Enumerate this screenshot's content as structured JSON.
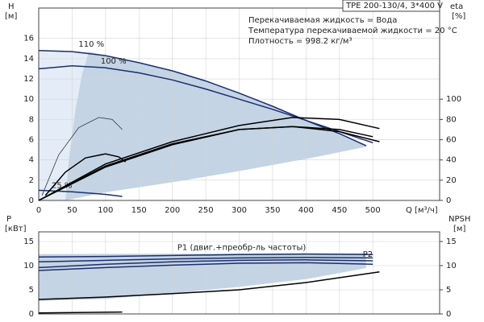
{
  "chart_data": [
    {
      "type": "line",
      "model": "TPE 200-130/4, 3*400 V",
      "notes": [
        "Перекачиваемая жидкость = Вода",
        "Температура перекачиваемой жидкости = 20 °C",
        "Плотность = 998.2 кг/м³"
      ],
      "x_label": "Q [м³/ч]",
      "y_label": "H",
      "y_unit": "[м]",
      "y2_label": "eta",
      "y2_unit": "[%]",
      "xlim": [
        0,
        600
      ],
      "xticks": [
        0,
        50,
        100,
        150,
        200,
        250,
        300,
        350,
        400,
        450,
        500
      ],
      "ylim": [
        0,
        19
      ],
      "yticks": [
        0,
        2,
        4,
        6,
        8,
        10,
        12,
        14,
        16
      ],
      "y2lim": [
        0,
        190
      ],
      "y2ticks": [
        0,
        20,
        40,
        60,
        80,
        100
      ],
      "grid": true,
      "areas": [
        {
          "color": "#e4edf7",
          "x": [
            0,
            75,
            65,
            55,
            45,
            40,
            0
          ],
          "values": [
            14.8,
            14.7,
            12.5,
            9,
            4,
            0,
            0
          ]
        },
        {
          "color": "#c4d4e4",
          "x": [
            75,
            100,
            150,
            200,
            250,
            300,
            350,
            400,
            450,
            490,
            490,
            400,
            300,
            200,
            100,
            40,
            45,
            55,
            65
          ],
          "values": [
            14.7,
            14.3,
            13.6,
            12.8,
            11.8,
            10.6,
            9.3,
            7.9,
            6.6,
            5.4,
            5.3,
            4.1,
            2.9,
            1.8,
            0.8,
            0,
            4,
            9,
            12.5
          ]
        }
      ],
      "series": [
        {
          "name": "110 %",
          "color": "#1c2f6e",
          "x": [
            0,
            50,
            100,
            150,
            200,
            250,
            300,
            350,
            400,
            450,
            490
          ],
          "values": [
            14.8,
            14.7,
            14.3,
            13.6,
            12.8,
            11.8,
            10.6,
            9.3,
            7.9,
            6.6,
            5.4
          ]
        },
        {
          "name": "100 %",
          "color": "#1c2f6e",
          "x": [
            0,
            50,
            100,
            150,
            200,
            250,
            300,
            350,
            400,
            450,
            500
          ],
          "values": [
            13.0,
            13.3,
            13.1,
            12.6,
            11.9,
            11.0,
            10.0,
            9.0,
            7.9,
            6.8,
            5.7
          ]
        },
        {
          "name": "25 %",
          "color": "#1c2f6e",
          "x": [
            0,
            50,
            100,
            125
          ],
          "values": [
            1.0,
            0.85,
            0.6,
            0.4
          ]
        },
        {
          "color": "#333333",
          "axis": "y2",
          "x": [
            5,
            30,
            60,
            90,
            110,
            125
          ],
          "values": [
            5,
            45,
            72,
            82,
            80,
            70
          ]
        },
        {
          "color": "#000000",
          "axis": "y2",
          "x": [
            10,
            40,
            70,
            100,
            120,
            130
          ],
          "values": [
            5,
            28,
            42,
            46,
            43,
            38
          ]
        },
        {
          "color": "#000000",
          "axis": "y2",
          "x": [
            0,
            100,
            200,
            300,
            380,
            450,
            510
          ],
          "values": [
            0,
            36,
            58,
            74,
            82,
            80,
            71
          ]
        },
        {
          "color": "#000000",
          "axis": "y2",
          "x": [
            0,
            100,
            200,
            300,
            380,
            450,
            500
          ],
          "values": [
            0,
            34,
            56,
            70,
            73,
            70,
            63
          ]
        },
        {
          "color": "#000000",
          "axis": "y2",
          "x": [
            0,
            100,
            200,
            300,
            380,
            450,
            510
          ],
          "values": [
            0,
            33,
            55,
            70,
            73,
            68,
            58
          ]
        }
      ]
    },
    {
      "type": "line",
      "y_label": "P",
      "y_unit": "[кВт]",
      "y2_label": "NPSH",
      "y2_unit": "[м]",
      "xlim": [
        0,
        600
      ],
      "ylim": [
        0,
        17
      ],
      "yticks": [
        0,
        5,
        10,
        15
      ],
      "y2lim": [
        0,
        17
      ],
      "y2ticks": [
        0,
        5,
        10,
        15
      ],
      "grid": true,
      "areas": [
        {
          "color": "#c4d4e4",
          "x": [
            0,
            490,
            490,
            400,
            300,
            200,
            100,
            0
          ],
          "values": [
            12.4,
            12.6,
            9.5,
            7.2,
            5.6,
            4.3,
            3.1,
            2.7
          ]
        }
      ],
      "series": [
        {
          "name": "P1 (двиг.+преобр-ль частоты)",
          "color": "#1c2f6e",
          "x": [
            0,
            100,
            200,
            300,
            400,
            500
          ],
          "values": [
            11.8,
            11.9,
            12.1,
            12.3,
            12.4,
            12.3
          ]
        },
        {
          "color": "#1c2f6e",
          "x": [
            0,
            100,
            200,
            300,
            400,
            500
          ],
          "values": [
            10.8,
            11.1,
            11.4,
            11.6,
            11.7,
            11.6
          ]
        },
        {
          "name": "P2",
          "color": "#1c2f6e",
          "x": [
            0,
            100,
            200,
            300,
            400,
            500
          ],
          "values": [
            9.6,
            10.3,
            10.8,
            11.1,
            11.2,
            11.0
          ]
        },
        {
          "color": "#1c2f6e",
          "x": [
            0,
            100,
            200,
            300,
            400,
            500
          ],
          "values": [
            9.0,
            9.6,
            10.1,
            10.5,
            10.6,
            10.3
          ]
        },
        {
          "color": "#000000",
          "x": [
            0,
            125
          ],
          "values": [
            0.2,
            0.4
          ]
        },
        {
          "color": "#000000",
          "axis": "y2",
          "x": [
            0,
            100,
            200,
            300,
            400,
            510
          ],
          "values": [
            3.0,
            3.5,
            4.2,
            5.0,
            6.5,
            8.7
          ]
        }
      ]
    }
  ]
}
